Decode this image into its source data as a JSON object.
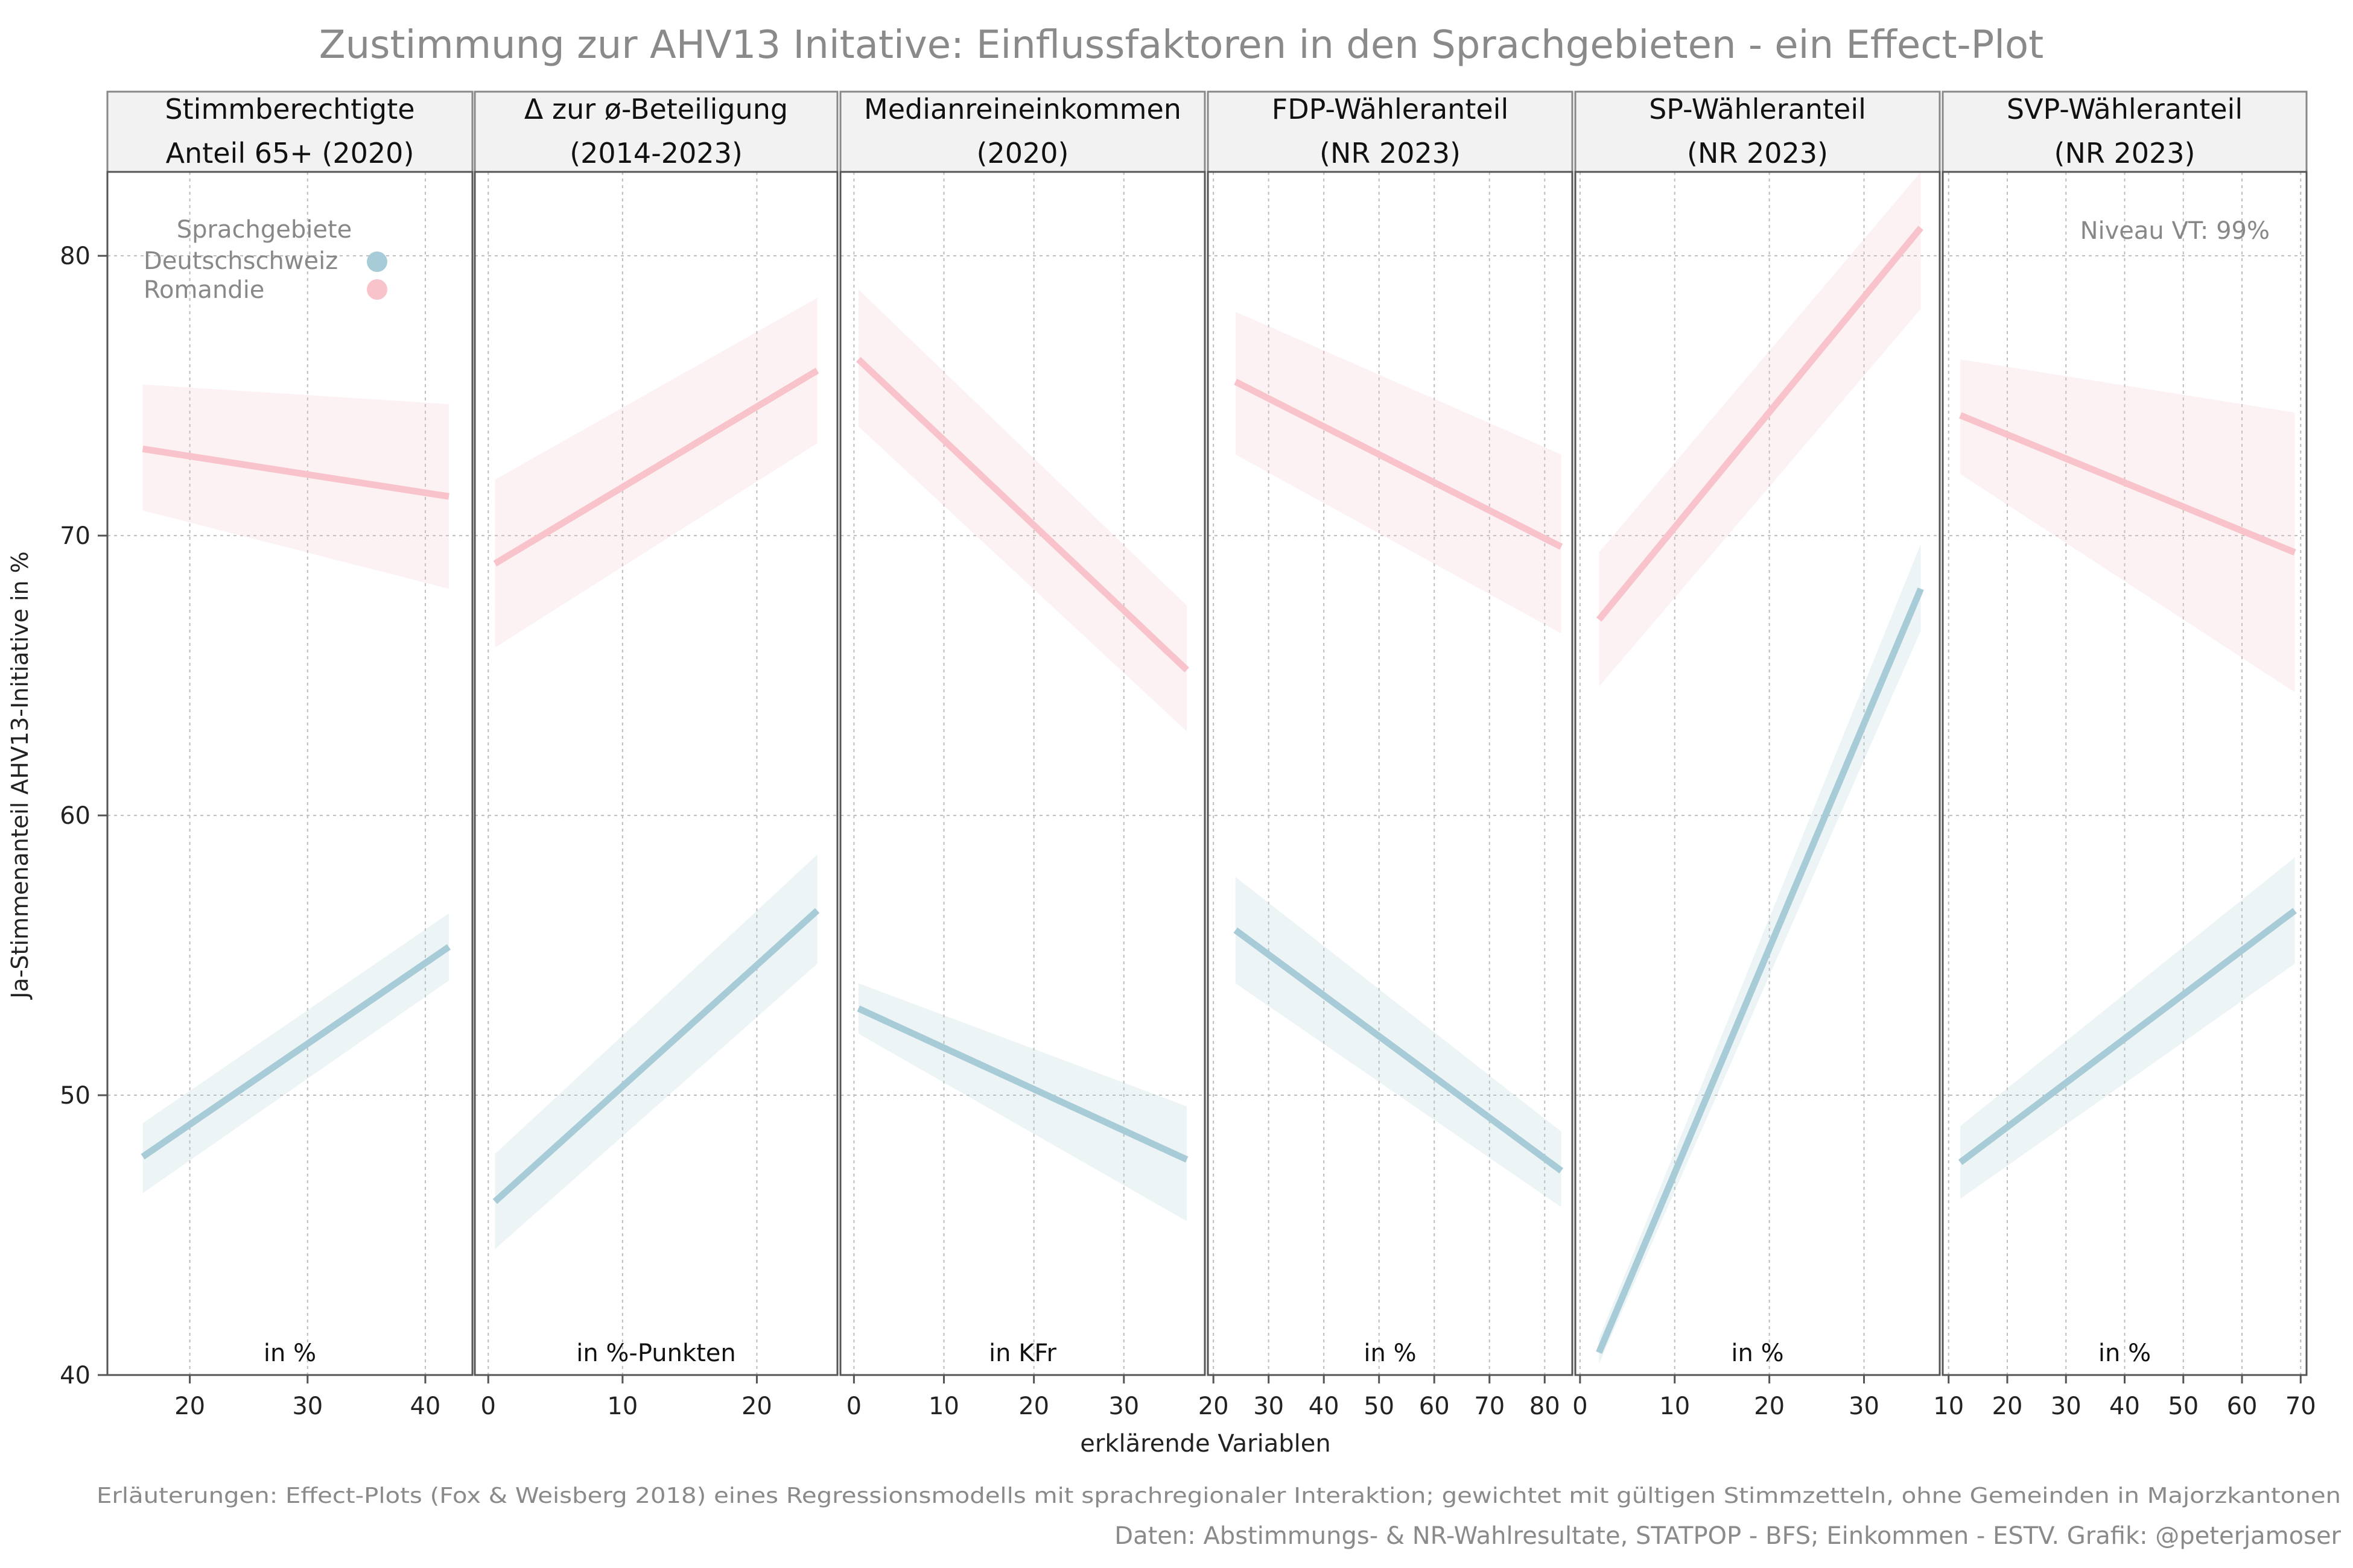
{
  "chart_data": {
    "type": "line",
    "title": "Zustimmung zur AHV13 Initative: Einflussfaktoren in den Sprachgebieten - ein Effect-Plot",
    "ylabel": "Ja-Stimmenanteil AHV13-Initiative in %",
    "xlabel": "erklärende Variablen",
    "ylim": [
      40,
      83
    ],
    "yticks": [
      40,
      50,
      60,
      70,
      80
    ],
    "grid": true,
    "legend": {
      "title": "Sprachgebiete",
      "position": "top-left",
      "entries": [
        {
          "label": "Deutschschweiz",
          "color": "#a8ccd7"
        },
        {
          "label": "Romandie",
          "color": "#f8c3ca"
        }
      ]
    },
    "confidence_note": "Niveau VT: 99%",
    "colors": {
      "Deutschschweiz": "#a8ccd7",
      "Romandie": "#f8c3ca"
    },
    "panels": [
      {
        "strip_line1": "Stimmberechtigte",
        "strip_line2": "Anteil 65+ (2020)",
        "unit": "in %",
        "xlim": [
          13,
          44
        ],
        "xticks": [
          20,
          30,
          40
        ],
        "series": [
          {
            "name": "Deutschschweiz",
            "x": [
              16,
              42
            ],
            "y": [
              47.8,
              55.3
            ],
            "lower": [
              46.5,
              54.1
            ],
            "upper": [
              49.0,
              56.5
            ]
          },
          {
            "name": "Romandie",
            "x": [
              16,
              42
            ],
            "y": [
              73.1,
              71.4
            ],
            "lower": [
              70.9,
              68.1
            ],
            "upper": [
              75.4,
              74.7
            ]
          }
        ]
      },
      {
        "strip_line1": "Δ zur ø-Beteiligung",
        "strip_line2": "(2014-2023)",
        "unit": "in %-Punkten",
        "xlim": [
          -1,
          26
        ],
        "xticks": [
          0,
          10,
          20
        ],
        "series": [
          {
            "name": "Deutschschweiz",
            "x": [
              0.5,
              24.5
            ],
            "y": [
              46.2,
              56.6
            ],
            "lower": [
              44.5,
              54.7
            ],
            "upper": [
              47.9,
              58.6
            ]
          },
          {
            "name": "Romandie",
            "x": [
              0.5,
              24.5
            ],
            "y": [
              69.0,
              75.9
            ],
            "lower": [
              66.0,
              73.3
            ],
            "upper": [
              72.0,
              78.5
            ]
          }
        ]
      },
      {
        "strip_line1": "Medianreineinkommen",
        "strip_line2": "(2020)",
        "unit": "in KFr",
        "xlim": [
          -1.5,
          39
        ],
        "xticks": [
          0,
          10,
          20,
          30
        ],
        "series": [
          {
            "name": "Deutschschweiz",
            "x": [
              0.5,
              37
            ],
            "y": [
              53.1,
              47.7
            ],
            "lower": [
              52.2,
              45.5
            ],
            "upper": [
              54.0,
              49.6
            ]
          },
          {
            "name": "Romandie",
            "x": [
              0.5,
              37
            ],
            "y": [
              76.3,
              65.2
            ],
            "lower": [
              73.9,
              63.0
            ],
            "upper": [
              78.8,
              67.5
            ]
          }
        ]
      },
      {
        "strip_line1": "FDP-Wähleranteil",
        "strip_line2": "(NR 2023)",
        "unit": "in %",
        "xlim": [
          19,
          85
        ],
        "xticks": [
          20,
          30,
          40,
          50,
          60,
          70,
          80
        ],
        "series": [
          {
            "name": "Deutschschweiz",
            "x": [
              24,
              83
            ],
            "y": [
              55.9,
              47.3
            ],
            "lower": [
              54.0,
              46.0
            ],
            "upper": [
              57.8,
              48.7
            ]
          },
          {
            "name": "Romandie",
            "x": [
              24,
              83
            ],
            "y": [
              75.5,
              69.6
            ],
            "lower": [
              72.9,
              66.5
            ],
            "upper": [
              78.0,
              72.9
            ]
          }
        ]
      },
      {
        "strip_line1": "SP-Wähleranteil",
        "strip_line2": "(NR 2023)",
        "unit": "in %",
        "xlim": [
          -0.5,
          38
        ],
        "xticks": [
          0,
          10,
          20,
          30
        ],
        "series": [
          {
            "name": "Deutschschweiz",
            "x": [
              2,
              36
            ],
            "y": [
              40.8,
              68.1
            ],
            "lower": [
              40.4,
              66.6
            ],
            "upper": [
              41.3,
              69.7
            ]
          },
          {
            "name": "Romandie",
            "x": [
              2,
              36
            ],
            "y": [
              67.0,
              81.0
            ],
            "lower": [
              64.6,
              78.1
            ],
            "upper": [
              69.4,
              83.0
            ]
          }
        ]
      },
      {
        "strip_line1": "SVP-Wähleranteil",
        "strip_line2": "(NR 2023)",
        "unit": "in %",
        "xlim": [
          9,
          71
        ],
        "xticks": [
          10,
          20,
          30,
          40,
          50,
          60,
          70
        ],
        "series": [
          {
            "name": "Deutschschweiz",
            "x": [
              12,
              69
            ],
            "y": [
              47.6,
              56.6
            ],
            "lower": [
              46.3,
              54.7
            ],
            "upper": [
              48.9,
              58.5
            ]
          },
          {
            "name": "Romandie",
            "x": [
              12,
              69
            ],
            "y": [
              74.3,
              69.4
            ],
            "lower": [
              72.2,
              64.4
            ],
            "upper": [
              76.3,
              74.4
            ]
          }
        ]
      }
    ],
    "caption1": "Erläuterungen: Effect-Plots (Fox & Weisberg 2018) eines Regressionsmodells mit sprachregionaler Interaktion; gewichtet mit gültigen Stimmzetteln, ohne Gemeinden in Majorzkantonen",
    "caption2": "Daten: Abstimmungs- & NR-Wahlresultate, STATPOP - BFS; Einkommen - ESTV. Grafik: @peterjamoser"
  }
}
